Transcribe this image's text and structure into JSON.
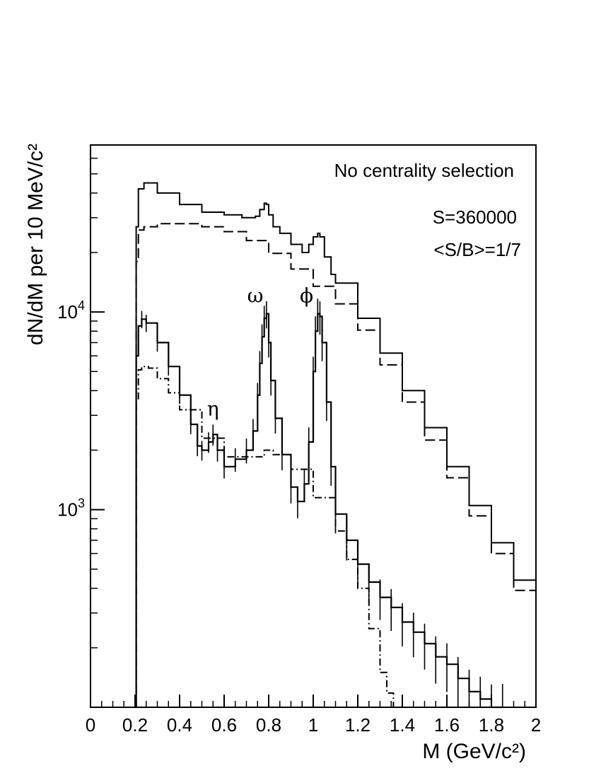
{
  "chart_data": {
    "type": "line",
    "xlabel": "M (GeV/c²)",
    "ylabel": "dN/dM per 10 MeV/c²",
    "xlim": [
      0,
      2
    ],
    "ylim": [
      100,
      70000
    ],
    "yscale": "log",
    "grid": false,
    "x_ticks": [
      "0",
      "0.2",
      "0.4",
      "0.6",
      "0.8",
      "1",
      "1.2",
      "1.4",
      "1.6",
      "1.8",
      "2"
    ],
    "y_ticks": [
      {
        "value": 1000,
        "base": "10",
        "exp": "3"
      },
      {
        "value": 10000,
        "base": "10",
        "exp": "4"
      }
    ],
    "annotations": {
      "centrality": "No centrality selection",
      "signal": "S=360000",
      "ratio": "<S/B>=1/7"
    },
    "peak_labels": [
      {
        "text": "η",
        "x": 0.55,
        "y": 3000
      },
      {
        "text": "ω",
        "x": 0.74,
        "y": 11200
      },
      {
        "text": "ϕ",
        "x": 0.97,
        "y": 11200
      }
    ],
    "series": [
      {
        "style": "solid",
        "x": [
          0.2,
          0.205,
          0.215,
          0.24,
          0.3,
          0.4,
          0.5,
          0.6,
          0.68,
          0.74,
          0.76,
          0.78,
          0.79,
          0.8,
          0.82,
          0.85,
          0.9,
          0.95,
          0.98,
          1.0,
          1.02,
          1.03,
          1.05,
          1.08,
          1.1,
          1.2,
          1.3,
          1.4,
          1.5,
          1.6,
          1.7,
          1.8,
          1.9,
          2.0
        ],
        "y": [
          100,
          27000,
          42000,
          45000,
          40000,
          35000,
          32000,
          31000,
          30000,
          30500,
          33000,
          35500,
          35000,
          31000,
          27000,
          25000,
          22000,
          20000,
          22000,
          24000,
          25000,
          24000,
          19000,
          15500,
          14000,
          9300,
          6200,
          4000,
          2600,
          1650,
          1050,
          680,
          440,
          320
        ]
      },
      {
        "style": "dashed",
        "x": [
          0.2,
          0.205,
          0.215,
          0.24,
          0.3,
          0.4,
          0.5,
          0.6,
          0.7,
          0.8,
          0.9,
          1.0,
          1.1,
          1.2,
          1.3,
          1.4,
          1.5,
          1.6,
          1.7,
          1.8,
          1.9,
          2.0
        ],
        "y": [
          100,
          18000,
          26000,
          27000,
          28000,
          28000,
          27000,
          25500,
          23000,
          19800,
          16500,
          13500,
          11000,
          8100,
          5400,
          3500,
          2250,
          1450,
          930,
          600,
          390,
          260
        ]
      },
      {
        "style": "solid-errorbars",
        "x": [
          0.2,
          0.205,
          0.215,
          0.23,
          0.25,
          0.3,
          0.35,
          0.4,
          0.45,
          0.48,
          0.5,
          0.53,
          0.55,
          0.57,
          0.6,
          0.65,
          0.7,
          0.73,
          0.75,
          0.76,
          0.77,
          0.78,
          0.79,
          0.8,
          0.81,
          0.83,
          0.86,
          0.9,
          0.93,
          0.96,
          0.98,
          1.0,
          1.01,
          1.02,
          1.03,
          1.04,
          1.06,
          1.08,
          1.1,
          1.15,
          1.2,
          1.25,
          1.3,
          1.35,
          1.4,
          1.45,
          1.5,
          1.55,
          1.6,
          1.65,
          1.7,
          1.75,
          1.8,
          1.85
        ],
        "y": [
          100,
          6000,
          8500,
          9200,
          8800,
          7000,
          5300,
          3800,
          2700,
          2100,
          2000,
          2200,
          2400,
          2000,
          1650,
          1800,
          2000,
          2500,
          3800,
          5500,
          7500,
          9300,
          9800,
          7000,
          4500,
          2900,
          1900,
          1300,
          1100,
          1350,
          2200,
          5000,
          8000,
          9800,
          9500,
          7000,
          3500,
          1650,
          950,
          700,
          530,
          430,
          360,
          320,
          270,
          240,
          210,
          180,
          165,
          140,
          120,
          110,
          100,
          100
        ]
      },
      {
        "style": "dash-dot",
        "x": [
          0.2,
          0.205,
          0.215,
          0.23,
          0.26,
          0.3,
          0.35,
          0.4,
          0.5,
          0.6,
          0.7,
          0.78,
          0.82,
          0.9,
          1.0,
          1.1,
          1.15,
          1.2,
          1.25,
          1.3,
          1.33,
          1.36
        ],
        "y": [
          100,
          3600,
          5100,
          5300,
          5200,
          4600,
          3900,
          3200,
          2300,
          1850,
          1850,
          2000,
          1900,
          1600,
          1150,
          780,
          560,
          400,
          250,
          150,
          118,
          100
        ]
      }
    ]
  }
}
